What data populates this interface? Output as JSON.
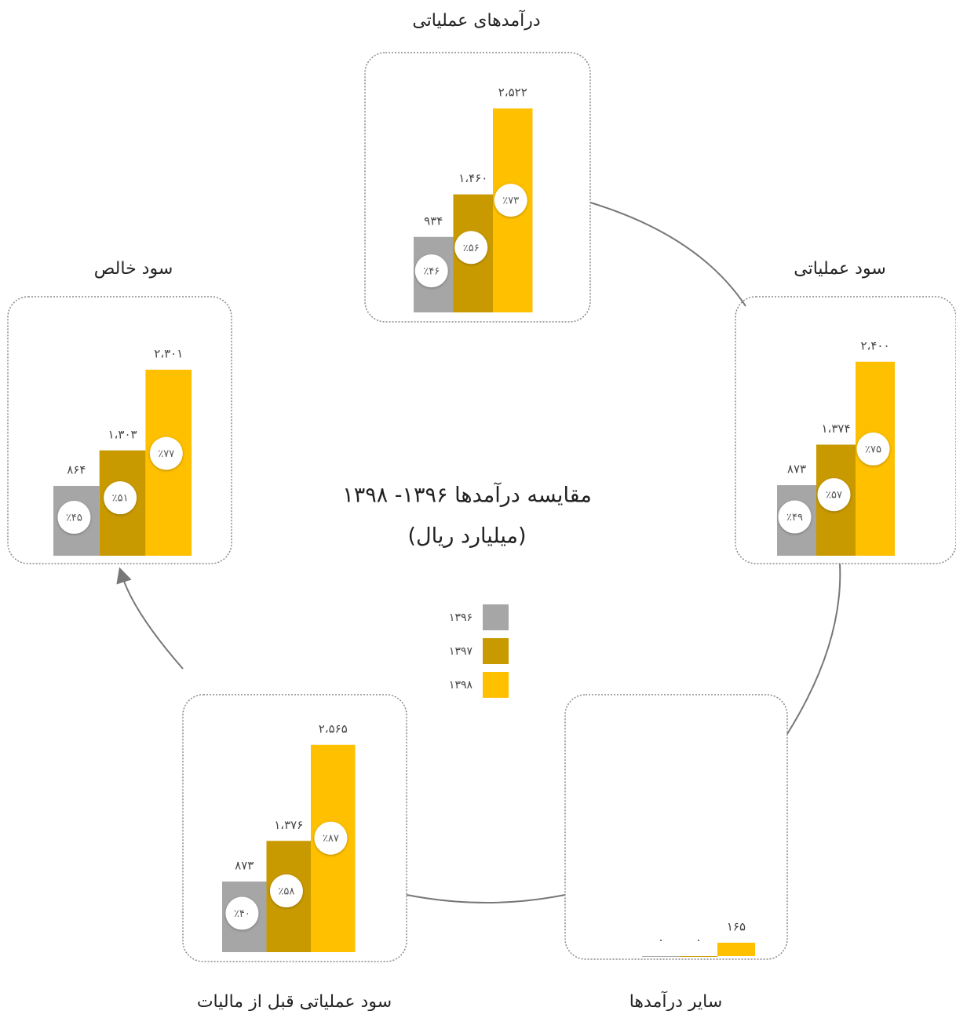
{
  "title": "مقایسه درآمدها ۱۳۹۶- ۱۳۹۸",
  "subtitle": "(میلیارد ریال)",
  "legend": [
    {
      "name": "۱۳۹۶",
      "color": "#a6a6a6"
    },
    {
      "name": "۱۳۹۷",
      "color": "#c99a00"
    },
    {
      "name": "۱۳۹۸",
      "color": "#ffc000"
    }
  ],
  "chart_data": [
    {
      "type": "bar",
      "title": "درآمدهای عملیاتی",
      "values": [
        934,
        1460,
        2522
      ],
      "value_labels": [
        "۹۳۴",
        "۱،۴۶۰",
        "۲،۵۲۲"
      ],
      "percents": [
        46,
        56,
        73
      ],
      "percent_labels": [
        "٪۴۶",
        "٪۵۶",
        "٪۷۳"
      ]
    },
    {
      "type": "bar",
      "title": "سود عملیاتی",
      "values": [
        873,
        1374,
        2400
      ],
      "value_labels": [
        "۸۷۳",
        "۱،۳۷۴",
        "۲،۴۰۰"
      ],
      "percents": [
        49,
        57,
        75
      ],
      "percent_labels": [
        "٪۴۹",
        "٪۵۷",
        "٪۷۵"
      ]
    },
    {
      "type": "bar",
      "title": "سایر درآمدها",
      "values": [
        0,
        0,
        165
      ],
      "value_labels": [
        "۰",
        "۰",
        "۱۶۵"
      ]
    },
    {
      "type": "bar",
      "title": "سود عملیاتی قبل از مالیات",
      "values": [
        873,
        1376,
        2565
      ],
      "value_labels": [
        "۸۷۳",
        "۱،۳۷۶",
        "۲،۵۶۵"
      ],
      "percents": [
        40,
        58,
        87
      ],
      "percent_labels": [
        "٪۴۰",
        "٪۵۸",
        "٪۸۷"
      ]
    },
    {
      "type": "bar",
      "title": "سود خالص",
      "values": [
        864,
        1303,
        2301
      ],
      "value_labels": [
        "۸۶۴",
        "۱،۳۰۳",
        "۲،۳۰۱"
      ],
      "percents": [
        45,
        51,
        77
      ],
      "percent_labels": [
        "٪۴۵",
        "٪۵۱",
        "٪۷۷"
      ]
    }
  ]
}
